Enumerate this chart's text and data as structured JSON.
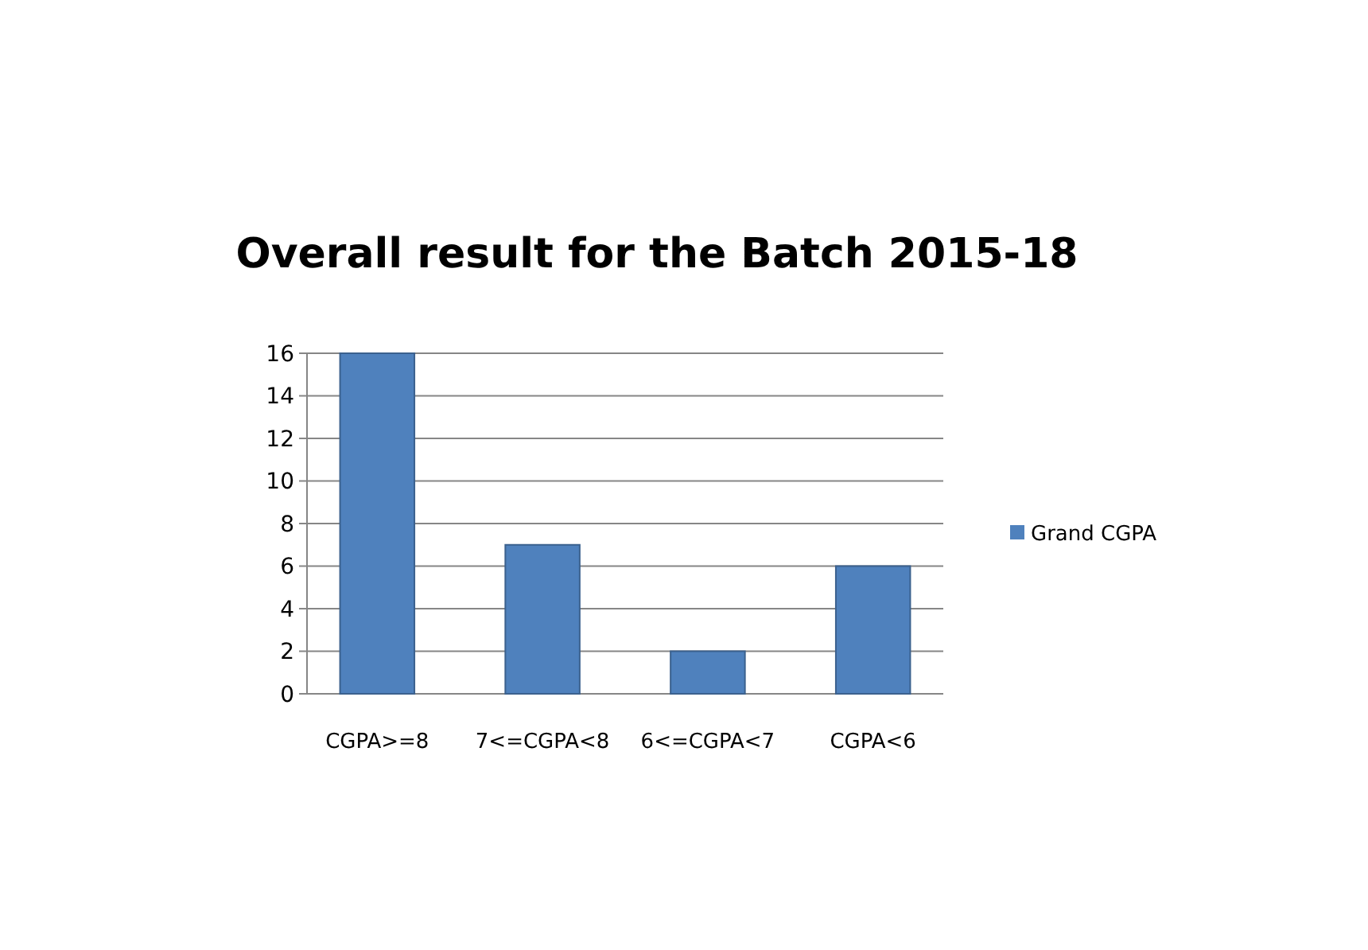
{
  "chart_data": {
    "type": "bar",
    "title": "Overall result for the Batch 2015-18",
    "categories": [
      "CGPA>=8",
      "7<=CGPA<8",
      "6<=CGPA<7",
      "CGPA<6"
    ],
    "series": [
      {
        "name": "Grand CGPA",
        "color": "#4f81bd",
        "values": [
          16,
          7,
          2,
          6
        ]
      }
    ],
    "ylim": [
      0,
      16
    ],
    "yticks": [
      0,
      2,
      4,
      6,
      8,
      10,
      12,
      14,
      16
    ],
    "grid": "y",
    "legend": "right"
  }
}
